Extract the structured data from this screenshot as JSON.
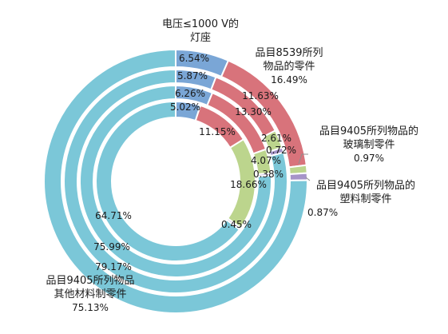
{
  "chart_data": {
    "type": "donut",
    "ring_count": 4,
    "categories": [
      "电压≤1000 V的灯座",
      "品目8539所列物品的零件",
      "品目9405所列物品的玻璃制零件",
      "品目9405所列物品的塑料制零件",
      "品目9405所列物品其他材料制零件"
    ],
    "category_labels": [
      [
        "电压≤1000 V的",
        "灯座"
      ],
      [
        "品目8539所列",
        "物品的零件"
      ],
      [
        "品目9405所列物品的",
        "玻璃制零件"
      ],
      [
        "品目9405所列物品的",
        "塑料制零件"
      ],
      [
        "品目9405所列物品",
        "其他材料制零件"
      ]
    ],
    "colors": [
      "#7aa6d6",
      "#d8737b",
      "#bcd58d",
      "#a694c8",
      "#7bc7d8"
    ],
    "rings": [
      {
        "values": [
          5.02,
          11.15,
          18.66,
          0.45,
          64.71
        ],
        "labels": [
          "5.02%",
          "11.15%",
          "18.66%",
          "0.45%",
          "64.71%"
        ]
      },
      {
        "values": [
          6.26,
          13.3,
          4.07,
          0.38,
          75.99
        ],
        "labels": [
          "6.26%",
          "13.30%",
          "4.07%",
          "0.38%",
          "75.99%"
        ]
      },
      {
        "values": [
          5.87,
          11.63,
          2.61,
          0.72,
          79.17
        ],
        "labels": [
          "5.87%",
          "11.63%",
          "2.61%",
          "0.72%",
          "79.17%"
        ]
      },
      {
        "values": [
          6.54,
          16.49,
          0.97,
          0.87,
          75.13
        ],
        "labels": [
          "6.54%",
          "16.49%",
          "0.97%",
          "0.87%",
          "75.13%"
        ]
      }
    ]
  }
}
